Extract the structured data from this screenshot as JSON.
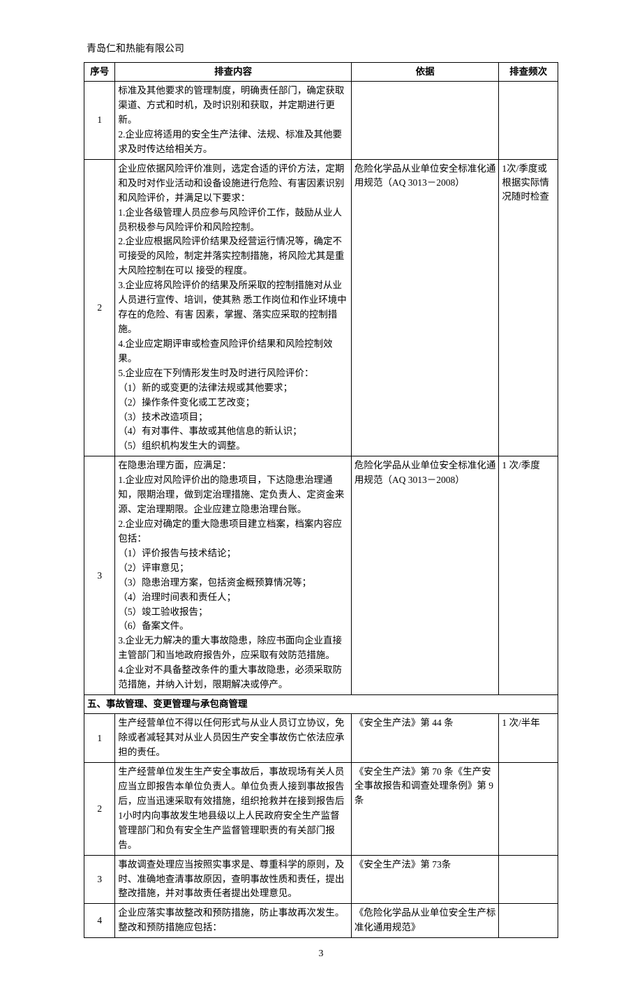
{
  "company": "青岛仁和热能有限公司",
  "page_number": "3",
  "headers": {
    "no": "序号",
    "content": "排查内容",
    "basis": "依据",
    "freq": "排查频次"
  },
  "section_header": "五、事故管理、变更管理与承包商管理",
  "rows": [
    {
      "no": "1",
      "content": "标准及其他要求的管理制度，明确责任部门，确定获取渠道、方式和时机，及时识别和获取，并定期进行更新。\n2.企业应将适用的安全生产法律、法规、标准及其他要求及时传达给相关方。",
      "basis": "",
      "freq": ""
    },
    {
      "no": "2",
      "content": "企业应依据风险评价准则，选定合适的评价方法，定期和及时对作业活动和设备设施进行危险、有害因素识别和风险评价，并满足以下要求：\n1.企业各级管理人员应参与风险评价工作，鼓励从业人员积极参与风险评价和风险控制。\n2.企业应根据风险评价结果及经营运行情况等，确定不可接受的风险，制定并落实控制措施，将风险尤其是重大风险控制在可以 接受的程度。\n3.企业应将风险评价的结果及所采取的控制措施对从业人员进行宣传、培训，使其熟 悉工作岗位和作业环境中存在的危险、有害 因素，掌握、落实应采取的控制措施。\n4.企业应定期评审或检查风险评价结果和风险控制效果。\n5.企业应在下列情形发生时及时进行风险评价：\n（1）新的或变更的法律法规或其他要求；\n（2）操作条件变化或工艺改变；\n（3）技术改造项目；\n（4）有对事件、事故或其他信息的新认识；\n（5）组织机构发生大的调整。",
      "basis": "危险化学品从业单位安全标准化通用规范（AQ 3013－2008）",
      "freq": "1次/季度或根据实际情况随时检查"
    },
    {
      "no": "3",
      "content": "在隐患治理方面，应满足：\n1.企业应对风险评价出的隐患项目，下达隐患治理通知，限期治理，做到定治理措施、定负责人、定资金来源、定治理期限。企业应建立隐患治理台账。\n2.企业应对确定的重大隐患项目建立档案，档案内容应包括：\n（1）评价报告与技术结论；\n（2）评审意见；\n（3）隐患治理方案，包括资金概预算情况等；\n（4）治理时间表和责任人；\n（5）竣工验收报告；\n（6）备案文件。\n3.企业无力解决的重大事故隐患，除应书面向企业直接主管部门和当地政府报告外，应采取有效防范措施。\n4.企业对不具备整改条件的重大事故隐患，必须采取防范措施，并纳入计划，限期解决或停产。",
      "basis": "危险化学品从业单位安全标准化通用规范（AQ 3013－2008）",
      "freq": "1 次/季度"
    }
  ],
  "section5_rows": [
    {
      "no": "1",
      "content": "生产经营单位不得以任何形式与从业人员订立协议，免除或者减轻其对从业人员因生产安全事故伤亡依法应承担的责任。",
      "basis": "《安全生产法》第 44 条",
      "freq": "1 次/半年"
    },
    {
      "no": "2",
      "content": "生产经营单位发生生产安全事故后，事故现场有关人员应当立即报告本单位负责人。单位负责人接到事故报告后，应当迅速采取有效措施，组织抢救并在接到报告后1小时内向事故发生地县级以上人民政府安全生产监督管理部门和负有安全生产监督管理职责的有关部门报告。",
      "basis": "《安全生产法》第 70 条《生产安全事故报告和调查处理条例》第 9 条",
      "freq": ""
    },
    {
      "no": "3",
      "content": "事故调查处理应当按照实事求是、尊重科学的原则，及时、准确地查清事故原因，查明事故性质和责任，提出整改措施，并对事故责任者提出处理意见。",
      "basis": "《安全生产法》第 73条",
      "freq": ""
    },
    {
      "no": "4",
      "content": "企业应落实事故整改和预防措施，防止事故再次发生。整改和预防措施应包括：",
      "basis": "《危险化学品从业单位安全生产标准化通用规范》",
      "freq": ""
    }
  ]
}
